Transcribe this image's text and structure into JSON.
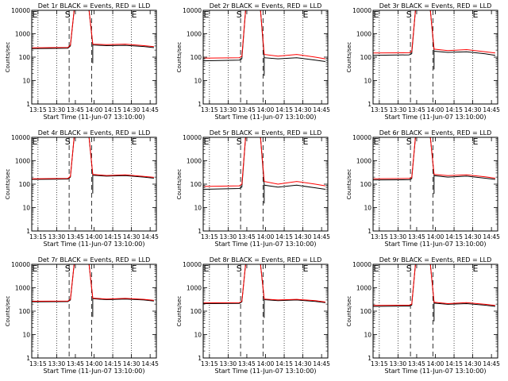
{
  "figure": {
    "xlabel": "Start Time (11-Jun-07 13:10:00)",
    "ylabel": "Counts/sec",
    "x_tick_labels": [
      "13:15",
      "13:30",
      "13:45",
      "14:00",
      "14:15",
      "14:30",
      "14:45"
    ],
    "y_tick_labels": [
      "1",
      "10",
      "100",
      "1000",
      "10000"
    ],
    "markers": [
      "E",
      "S",
      "E"
    ],
    "colors": {
      "events": "#000000",
      "lld": "#ff0000"
    }
  },
  "chart_data": [
    {
      "type": "line",
      "title": "Det 1r BLACK = Events, RED = LLD",
      "y_scale": "log",
      "ylim": [
        1,
        10000
      ],
      "xlim": [
        "13:10",
        "14:50"
      ],
      "marker_lines": [
        "13:40",
        "13:58"
      ],
      "dotted_lines": [
        "13:15",
        "13:30",
        "14:15",
        "14:30"
      ],
      "x": [
        "13:10",
        "13:39",
        "13:41",
        "13:44",
        "13:56",
        "13:59",
        "14:10",
        "14:25",
        "14:40",
        "14:48"
      ],
      "series": [
        {
          "name": "Events",
          "values": [
            230,
            240,
            300,
            10000,
            10000,
            330,
            310,
            320,
            285,
            255
          ]
        },
        {
          "name": "LLD",
          "values": [
            250,
            260,
            330,
            10000,
            10000,
            360,
            340,
            360,
            310,
            280
          ]
        }
      ]
    },
    {
      "type": "line",
      "title": "Det 2r BLACK = Events, RED = LLD",
      "y_scale": "log",
      "ylim": [
        1,
        10000
      ],
      "xlim": [
        "13:10",
        "14:50"
      ],
      "marker_lines": [
        "13:40",
        "13:58"
      ],
      "dotted_lines": [
        "13:15",
        "13:30",
        "14:15",
        "14:30"
      ],
      "x": [
        "13:10",
        "13:39",
        "13:41",
        "13:44",
        "13:56",
        "13:59",
        "14:10",
        "14:25",
        "14:40",
        "14:48"
      ],
      "series": [
        {
          "name": "Events",
          "values": [
            70,
            75,
            85,
            10000,
            10000,
            95,
            85,
            95,
            75,
            65
          ]
        },
        {
          "name": "LLD",
          "values": [
            90,
            95,
            110,
            10000,
            10000,
            130,
            110,
            130,
            100,
            85
          ]
        }
      ]
    },
    {
      "type": "line",
      "title": "Det 3r BLACK = Events, RED = LLD",
      "y_scale": "log",
      "ylim": [
        1,
        10000
      ],
      "xlim": [
        "13:10",
        "14:50"
      ],
      "marker_lines": [
        "13:40",
        "13:58"
      ],
      "dotted_lines": [
        "13:15",
        "13:30",
        "14:15",
        "14:30"
      ],
      "x": [
        "13:10",
        "13:39",
        "13:41",
        "13:44",
        "13:56",
        "13:59",
        "14:10",
        "14:25",
        "14:40",
        "14:48"
      ],
      "series": [
        {
          "name": "Events",
          "values": [
            120,
            125,
            140,
            10000,
            10000,
            180,
            160,
            170,
            140,
            120
          ]
        },
        {
          "name": "LLD",
          "values": [
            150,
            155,
            170,
            10000,
            10000,
            220,
            190,
            210,
            170,
            150
          ]
        }
      ]
    },
    {
      "type": "line",
      "title": "Det 4r BLACK = Events, RED = LLD",
      "y_scale": "log",
      "ylim": [
        1,
        10000
      ],
      "xlim": [
        "13:10",
        "14:50"
      ],
      "marker_lines": [
        "13:40",
        "13:58"
      ],
      "dotted_lines": [
        "13:15",
        "13:30",
        "14:15",
        "14:30"
      ],
      "x": [
        "13:10",
        "13:39",
        "13:41",
        "13:44",
        "13:56",
        "13:59",
        "14:10",
        "14:25",
        "14:40",
        "14:48"
      ],
      "series": [
        {
          "name": "Events",
          "values": [
            160,
            165,
            200,
            10000,
            10000,
            240,
            220,
            230,
            200,
            180
          ]
        },
        {
          "name": "LLD",
          "values": [
            170,
            175,
            215,
            10000,
            10000,
            260,
            235,
            250,
            215,
            195
          ]
        }
      ]
    },
    {
      "type": "line",
      "title": "Det 5r BLACK = Events, RED = LLD",
      "y_scale": "log",
      "ylim": [
        1,
        10000
      ],
      "xlim": [
        "13:10",
        "14:50"
      ],
      "marker_lines": [
        "13:40",
        "13:58"
      ],
      "dotted_lines": [
        "13:15",
        "13:30",
        "14:15",
        "14:30"
      ],
      "x": [
        "13:10",
        "13:39",
        "13:41",
        "13:44",
        "13:56",
        "13:59",
        "14:10",
        "14:25",
        "14:40",
        "14:48"
      ],
      "series": [
        {
          "name": "Events",
          "values": [
            60,
            65,
            75,
            10000,
            10000,
            90,
            75,
            90,
            70,
            60
          ]
        },
        {
          "name": "LLD",
          "values": [
            80,
            85,
            100,
            10000,
            10000,
            130,
            100,
            130,
            100,
            85
          ]
        }
      ]
    },
    {
      "type": "line",
      "title": "Det 6r BLACK = Events, RED = LLD",
      "y_scale": "log",
      "ylim": [
        1,
        10000
      ],
      "xlim": [
        "13:10",
        "14:50"
      ],
      "marker_lines": [
        "13:40",
        "13:58"
      ],
      "dotted_lines": [
        "13:15",
        "13:30",
        "14:15",
        "14:30"
      ],
      "x": [
        "13:10",
        "13:39",
        "13:41",
        "13:44",
        "13:56",
        "13:59",
        "14:10",
        "14:25",
        "14:40",
        "14:48"
      ],
      "series": [
        {
          "name": "Events",
          "values": [
            150,
            155,
            170,
            10000,
            10000,
            230,
            200,
            220,
            180,
            160
          ]
        },
        {
          "name": "LLD",
          "values": [
            170,
            175,
            190,
            10000,
            10000,
            260,
            230,
            250,
            205,
            180
          ]
        }
      ]
    },
    {
      "type": "line",
      "title": "Det 7r BLACK = Events, RED = LLD",
      "y_scale": "log",
      "ylim": [
        1,
        10000
      ],
      "xlim": [
        "13:10",
        "14:50"
      ],
      "marker_lines": [
        "13:40",
        "13:58"
      ],
      "dotted_lines": [
        "13:15",
        "13:30",
        "14:15",
        "14:30"
      ],
      "x": [
        "13:10",
        "13:39",
        "13:41",
        "13:44",
        "13:56",
        "13:59",
        "14:10",
        "14:25",
        "14:40",
        "14:48"
      ],
      "series": [
        {
          "name": "Events",
          "values": [
            250,
            255,
            300,
            10000,
            10000,
            340,
            310,
            330,
            300,
            270
          ]
        },
        {
          "name": "LLD",
          "values": [
            265,
            270,
            320,
            10000,
            10000,
            360,
            330,
            350,
            320,
            290
          ]
        }
      ]
    },
    {
      "type": "line",
      "title": "Det 8r BLACK = Events, RED = LLD",
      "y_scale": "log",
      "ylim": [
        1,
        10000
      ],
      "xlim": [
        "13:10",
        "14:50"
      ],
      "marker_lines": [
        "13:40",
        "13:58"
      ],
      "dotted_lines": [
        "13:15",
        "13:30",
        "14:15",
        "14:30"
      ],
      "x": [
        "13:10",
        "13:39",
        "13:41",
        "13:44",
        "13:56",
        "13:59",
        "14:10",
        "14:25",
        "14:40",
        "14:48"
      ],
      "series": [
        {
          "name": "Events",
          "values": [
            210,
            215,
            250,
            10000,
            10000,
            310,
            280,
            300,
            260,
            230
          ]
        },
        {
          "name": "LLD",
          "values": [
            225,
            230,
            265,
            10000,
            10000,
            330,
            300,
            320,
            280,
            245
          ]
        }
      ]
    },
    {
      "type": "line",
      "title": "Det 9r BLACK = Events, RED = LLD",
      "y_scale": "log",
      "ylim": [
        1,
        10000
      ],
      "xlim": [
        "13:10",
        "14:50"
      ],
      "marker_lines": [
        "13:40",
        "13:58"
      ],
      "dotted_lines": [
        "13:15",
        "13:30",
        "14:15",
        "14:30"
      ],
      "x": [
        "13:10",
        "13:39",
        "13:41",
        "13:44",
        "13:56",
        "13:59",
        "14:10",
        "14:25",
        "14:40",
        "14:48"
      ],
      "series": [
        {
          "name": "Events",
          "values": [
            160,
            165,
            180,
            10000,
            10000,
            220,
            195,
            210,
            180,
            160
          ]
        },
        {
          "name": "LLD",
          "values": [
            175,
            180,
            195,
            10000,
            10000,
            240,
            210,
            230,
            195,
            175
          ]
        }
      ]
    }
  ]
}
